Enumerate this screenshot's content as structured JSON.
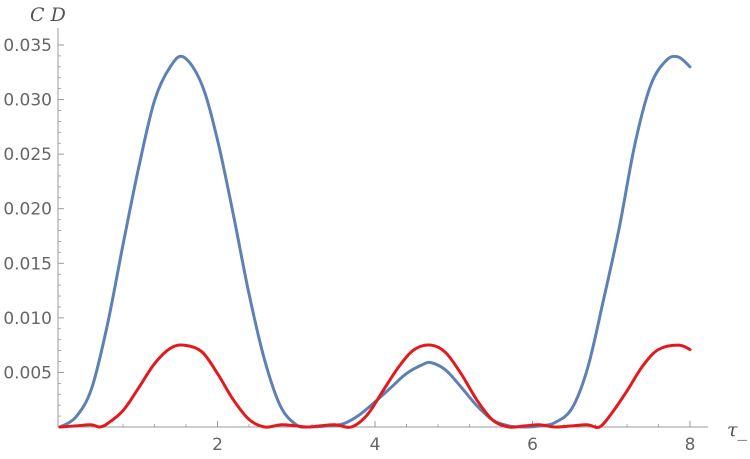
{
  "chart_data": {
    "type": "line",
    "title": "",
    "xlabel": "τ_",
    "ylabel": "C D",
    "xlim": [
      0,
      8.1
    ],
    "ylim": [
      0,
      0.035
    ],
    "x_ticks": [
      2,
      4,
      6,
      8
    ],
    "x_tick_labels": [
      "2",
      "4",
      "6",
      "8"
    ],
    "y_ticks": [
      0.005,
      0.01,
      0.015,
      0.02,
      0.025,
      0.03,
      0.035
    ],
    "y_tick_labels": [
      "0.005",
      "0.010",
      "0.015",
      "0.020",
      "0.025",
      "0.030",
      "0.035"
    ],
    "grid": false,
    "legend": "none",
    "series": [
      {
        "color": "#5e81b5",
        "x": [
          0,
          0.2,
          0.4,
          0.6,
          0.8,
          1.0,
          1.2,
          1.4,
          1.571,
          1.8,
          2.0,
          2.2,
          2.4,
          2.6,
          2.8,
          3.0,
          3.142,
          3.4,
          3.6,
          3.8,
          4.0,
          4.2,
          4.4,
          4.6,
          4.712,
          4.9,
          5.1,
          5.3,
          5.5,
          5.7,
          5.9,
          6.1,
          6.283,
          6.5,
          6.7,
          6.9,
          7.1,
          7.3,
          7.5,
          7.7,
          7.854,
          8.0
        ],
        "values": [
          0,
          0.0009,
          0.0035,
          0.0093,
          0.0167,
          0.0238,
          0.0299,
          0.033,
          0.0339,
          0.0314,
          0.0263,
          0.0195,
          0.0122,
          0.0061,
          0.0019,
          0.0002,
          0,
          0.0001,
          0.0003,
          0.0011,
          0.0023,
          0.0036,
          0.0049,
          0.0057,
          0.0059,
          0.0052,
          0.0036,
          0.0019,
          0.0006,
          0.0001,
          0,
          0.0001,
          0.0004,
          0.0017,
          0.0054,
          0.0116,
          0.0182,
          0.0259,
          0.0313,
          0.0336,
          0.0339,
          0.033
        ]
      },
      {
        "color": "#e31a1c",
        "x": [
          0,
          0.2,
          0.4,
          0.5,
          0.6,
          0.8,
          1.0,
          1.2,
          1.4,
          1.571,
          1.8,
          2.0,
          2.2,
          2.4,
          2.6,
          2.8,
          3.0,
          3.142,
          3.3,
          3.5,
          3.7,
          3.9,
          4.1,
          4.3,
          4.5,
          4.712,
          4.9,
          5.1,
          5.3,
          5.5,
          5.7,
          5.9,
          6.1,
          6.283,
          6.5,
          6.7,
          6.85,
          7.0,
          7.2,
          7.4,
          7.6,
          7.854,
          8.0
        ],
        "values": [
          0,
          0.0001,
          0.0002,
          0,
          0.0003,
          0.0015,
          0.0036,
          0.0058,
          0.0072,
          0.0075,
          0.0069,
          0.0049,
          0.0025,
          0.0007,
          0,
          0.0002,
          0.0001,
          0,
          0.0001,
          0.0002,
          0,
          0.0011,
          0.0033,
          0.0055,
          0.0071,
          0.0075,
          0.0068,
          0.0048,
          0.0024,
          0.0006,
          0,
          0.0001,
          0.0002,
          0,
          0.0001,
          0.0002,
          0,
          0.0012,
          0.0033,
          0.0056,
          0.0071,
          0.0075,
          0.0071
        ]
      }
    ]
  }
}
